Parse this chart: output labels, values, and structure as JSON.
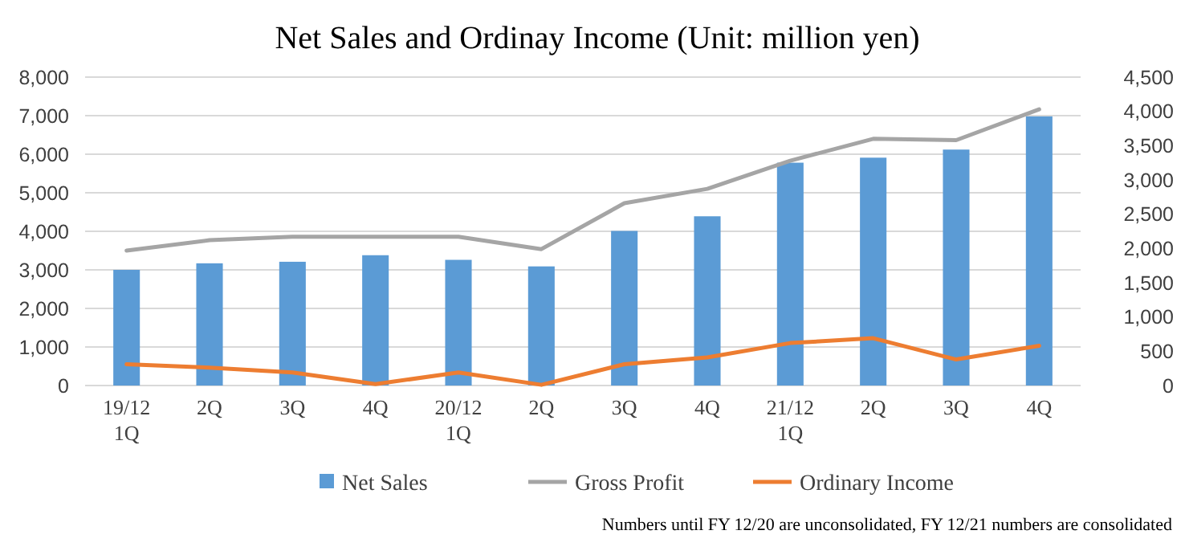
{
  "chart_data": {
    "type": "bar",
    "title": "Net Sales and Ordinay Income (Unit: million yen)",
    "categories": [
      "19/12\n1Q",
      "2Q",
      "3Q",
      "4Q",
      "20/12\n1Q",
      "2Q",
      "3Q",
      "4Q",
      "21/12\n1Q",
      "2Q",
      "3Q",
      "4Q"
    ],
    "series": [
      {
        "name": "Net Sales",
        "color": "#5b9bd5",
        "values": [
          3000,
          3170,
          3210,
          3380,
          3260,
          3090,
          4010,
          4390,
          5780,
          5910,
          6120,
          6980
        ]
      },
      {
        "name": "Gross Profit",
        "type": "line",
        "axis": "y2",
        "color": "#a5a5a5",
        "values": [
          1970,
          2120,
          2170,
          2170,
          2170,
          1990,
          2660,
          2870,
          3280,
          3600,
          3580,
          4030
        ]
      },
      {
        "name": "Ordinary Income",
        "type": "line",
        "axis": "y2",
        "color": "#ed7d31",
        "values": [
          310,
          260,
          190,
          20,
          190,
          10,
          310,
          410,
          620,
          690,
          380,
          580
        ]
      }
    ],
    "ylim": [
      0,
      8000
    ],
    "yticks": [
      {
        "value": 0,
        "label": "0"
      },
      {
        "value": 1000,
        "label": "1,000"
      },
      {
        "value": 2000,
        "label": "2,000"
      },
      {
        "value": 3000,
        "label": "3,000"
      },
      {
        "value": 4000,
        "label": "4,000"
      },
      {
        "value": 5000,
        "label": "5,000"
      },
      {
        "value": 6000,
        "label": "6,000"
      },
      {
        "value": 7000,
        "label": "7,000"
      },
      {
        "value": 8000,
        "label": "8,000"
      }
    ],
    "y2lim": [
      0,
      4500
    ],
    "y2ticks": [
      {
        "value": 0,
        "label": "0"
      },
      {
        "value": 500,
        "label": "500"
      },
      {
        "value": 1000,
        "label": "1,000"
      },
      {
        "value": 1500,
        "label": "1,500"
      },
      {
        "value": 2000,
        "label": "2,000"
      },
      {
        "value": 2500,
        "label": "2,500"
      },
      {
        "value": 3000,
        "label": "3,000"
      },
      {
        "value": 3500,
        "label": "3,500"
      },
      {
        "value": 4000,
        "label": "4,000"
      },
      {
        "value": 4500,
        "label": "4,500"
      }
    ],
    "grid": "y",
    "legend": "bottom",
    "marker": "none",
    "line_style": "solid",
    "annotations": [
      "Numbers until FY 12/20 are unconsolidated, FY 12/21 numbers are consolidated"
    ]
  }
}
